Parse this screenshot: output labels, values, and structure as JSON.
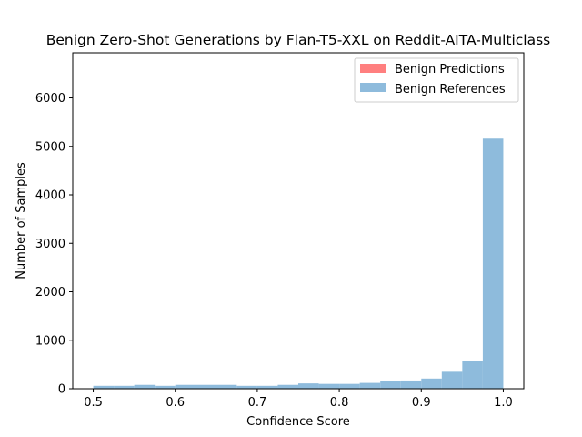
{
  "chart_data": {
    "type": "bar",
    "subtype": "histogram",
    "title": "Benign Zero-Shot Generations by Flan-T5-XXL on Reddit-AITA-Multiclass",
    "xlabel": "Confidence Score",
    "ylabel": "Number of Samples",
    "xlim": [
      0.475,
      1.025
    ],
    "ylim": [
      0,
      6930
    ],
    "xticks": [
      0.5,
      0.6,
      0.7,
      0.8,
      0.9,
      1.0
    ],
    "xtick_labels": [
      "0.5",
      "0.6",
      "0.7",
      "0.8",
      "0.9",
      "1.0"
    ],
    "yticks": [
      0,
      1000,
      2000,
      3000,
      4000,
      5000,
      6000
    ],
    "ytick_labels": [
      "0",
      "1000",
      "2000",
      "3000",
      "4000",
      "5000",
      "6000"
    ],
    "legend_position": "top-right",
    "series": [
      {
        "name": "Benign Predictions",
        "color": "#ff7f7f",
        "bins": [],
        "values": []
      },
      {
        "name": "Benign References",
        "color": "#8ebbdc",
        "bins": [
          [
            0.5,
            0.525
          ],
          [
            0.525,
            0.55
          ],
          [
            0.55,
            0.575
          ],
          [
            0.575,
            0.6
          ],
          [
            0.6,
            0.625
          ],
          [
            0.625,
            0.65
          ],
          [
            0.65,
            0.675
          ],
          [
            0.675,
            0.7
          ],
          [
            0.7,
            0.725
          ],
          [
            0.725,
            0.75
          ],
          [
            0.75,
            0.775
          ],
          [
            0.775,
            0.8
          ],
          [
            0.8,
            0.825
          ],
          [
            0.825,
            0.85
          ],
          [
            0.85,
            0.875
          ],
          [
            0.875,
            0.9
          ],
          [
            0.9,
            0.925
          ],
          [
            0.925,
            0.95
          ],
          [
            0.95,
            0.975
          ],
          [
            0.975,
            1.0
          ]
        ],
        "values": [
          60,
          60,
          80,
          60,
          80,
          80,
          80,
          60,
          60,
          80,
          110,
          100,
          100,
          120,
          150,
          170,
          210,
          350,
          570,
          5160
        ]
      }
    ]
  }
}
